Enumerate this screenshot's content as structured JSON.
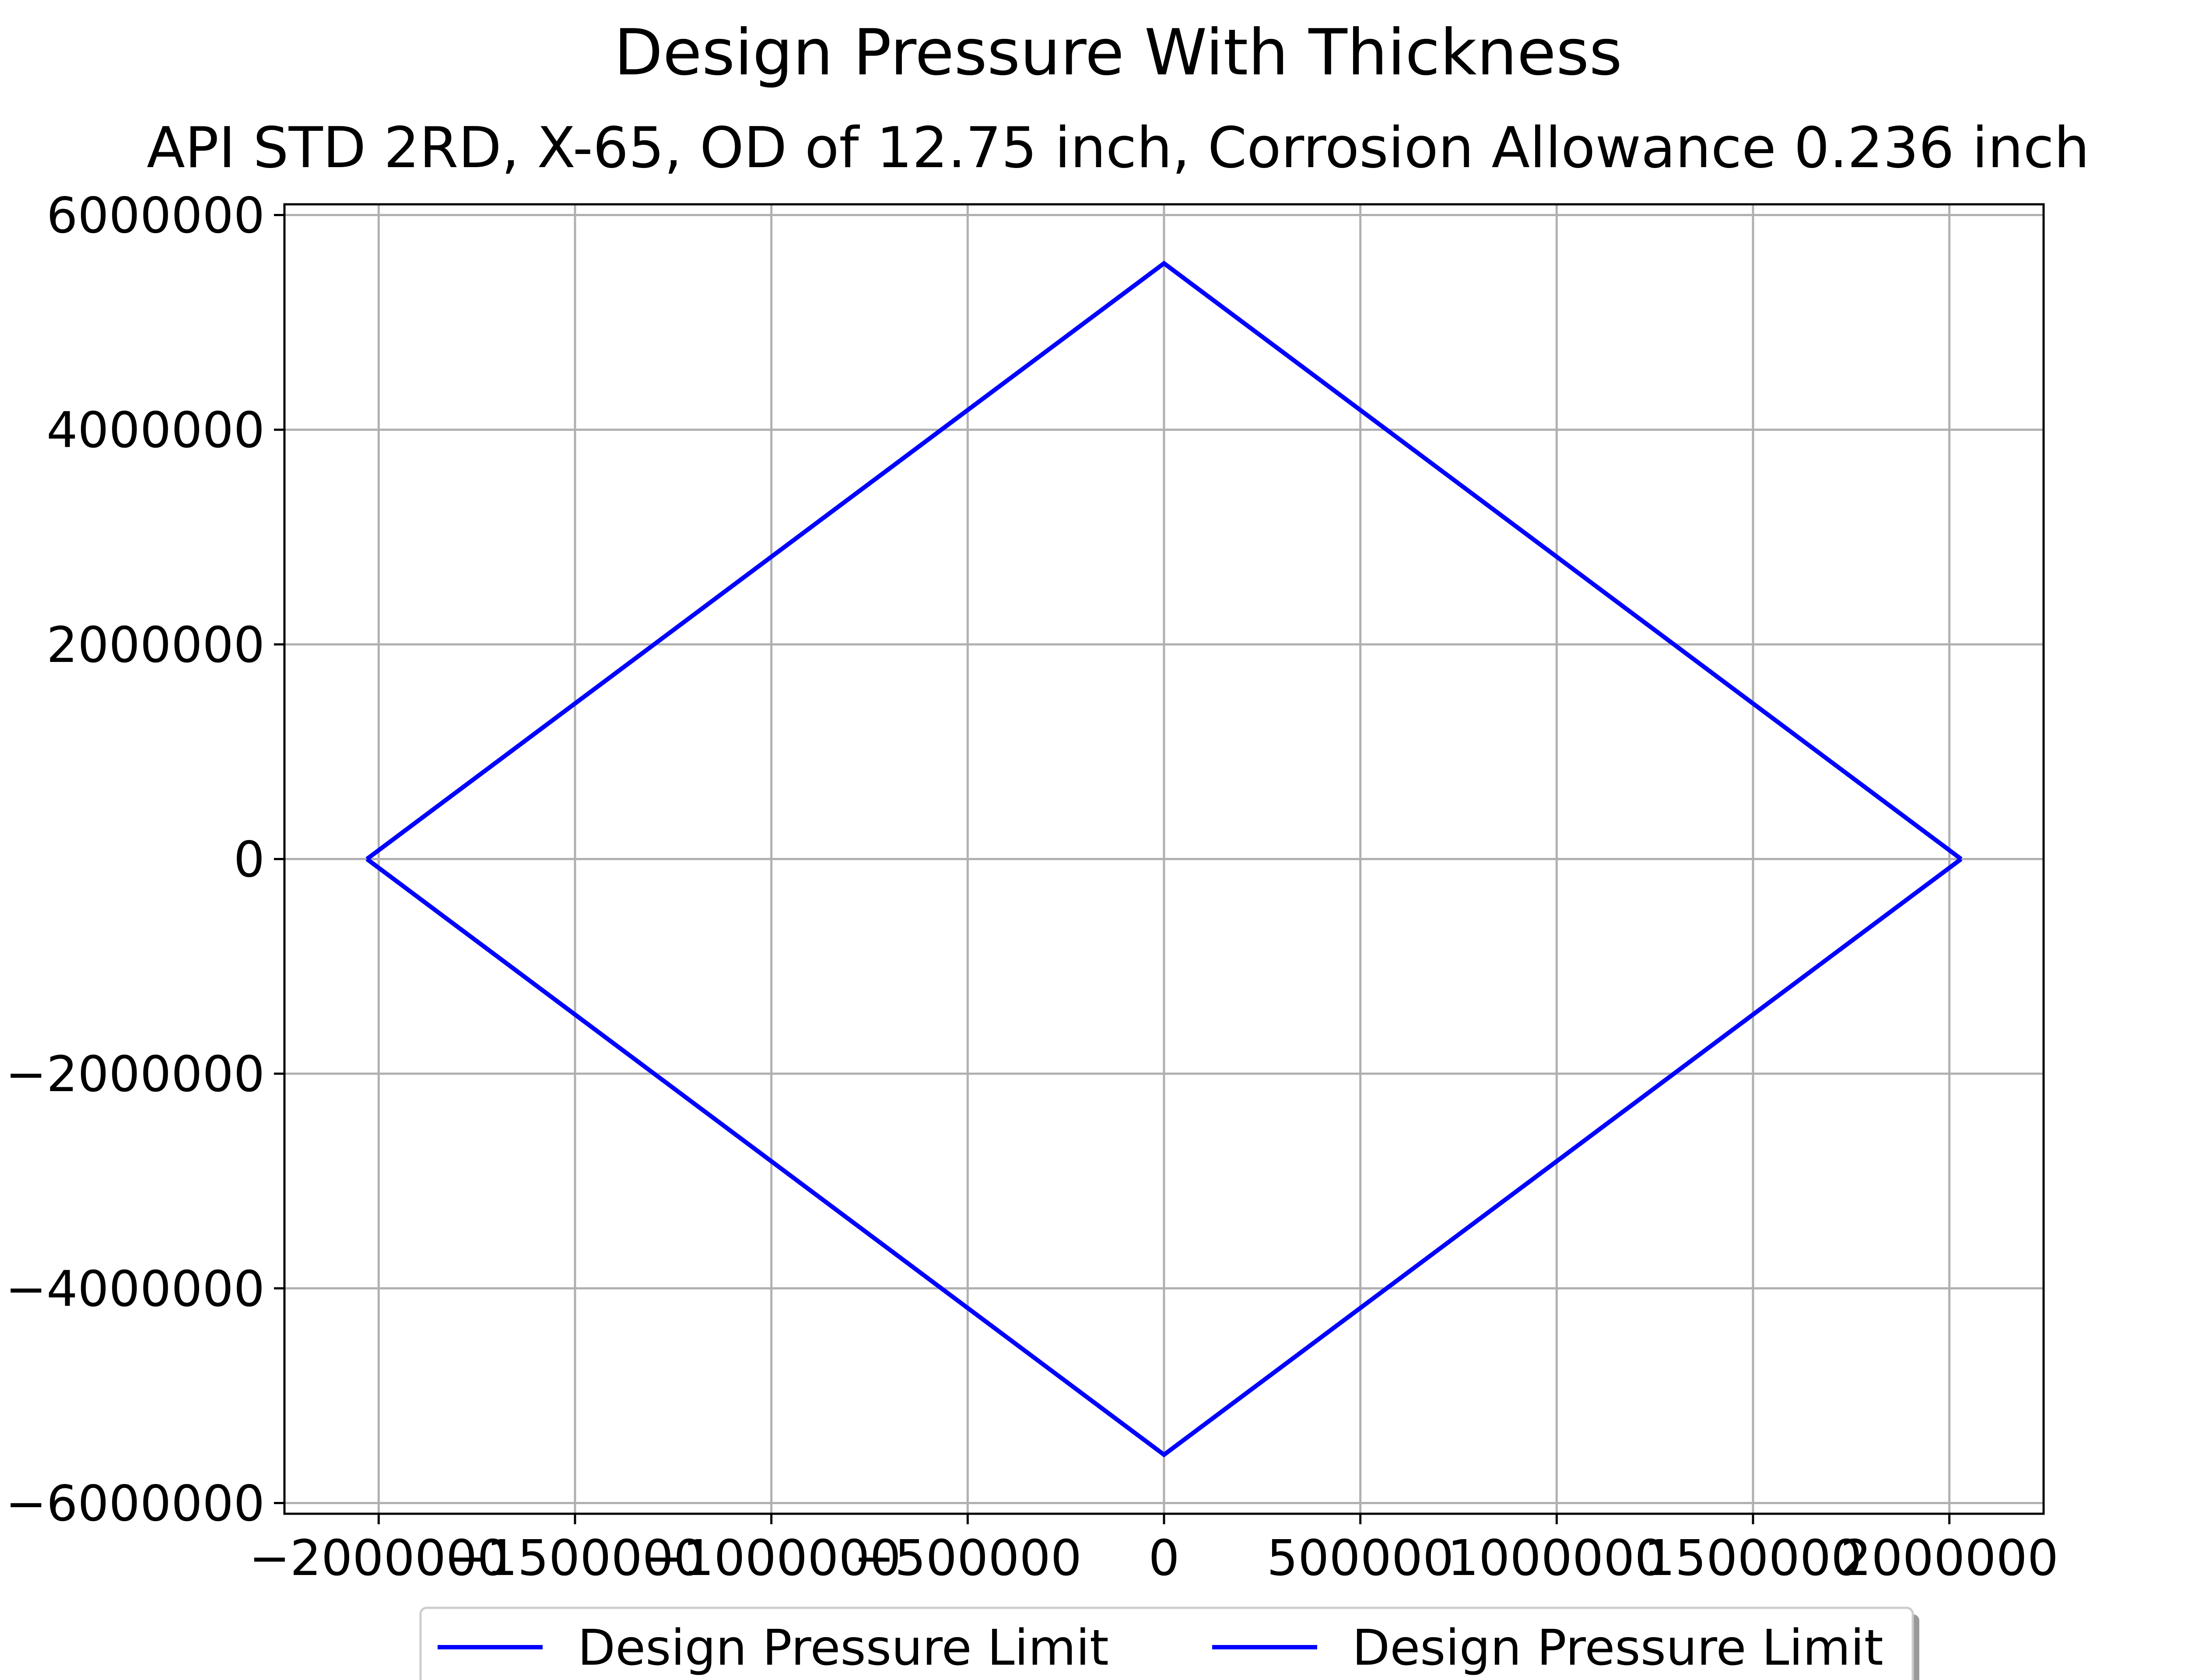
{
  "chart_data": {
    "type": "line",
    "title": "Design Pressure With Thickness",
    "subtitle": "API STD 2RD, X-65, OD of 12.75 inch, Corrosion Allowance 0.236 inch",
    "xlabel": "",
    "ylabel": "",
    "xlim": [
      -2240000,
      2240000
    ],
    "ylim": [
      -6100000,
      6100000
    ],
    "grid": true,
    "legend_placement": "bottom-center",
    "x_ticks": [
      -2000000,
      -1500000,
      -1000000,
      -500000,
      0,
      500000,
      1000000,
      1500000,
      2000000
    ],
    "x_tick_labels": [
      "−2000000",
      "−1500000",
      "−1000000",
      "−500000",
      "0",
      "500000",
      "1000000",
      "1500000",
      "2000000"
    ],
    "y_ticks": [
      6000000,
      4000000,
      2000000,
      0,
      -2000000,
      -4000000,
      -6000000
    ],
    "y_tick_labels": [
      "6000000",
      "4000000",
      "2000000",
      "0",
      "−2000000",
      "−4000000",
      "−6000000"
    ],
    "series": [
      {
        "name": "Design Pressure Limit",
        "color": "#0000ff",
        "x": [
          -2030000,
          0,
          2030000
        ],
        "y": [
          0,
          5550000,
          0
        ]
      },
      {
        "name": "Design Pressure Limit",
        "color": "#0000ff",
        "x": [
          -2030000,
          0,
          2030000
        ],
        "y": [
          0,
          -5550000,
          0
        ]
      }
    ]
  }
}
